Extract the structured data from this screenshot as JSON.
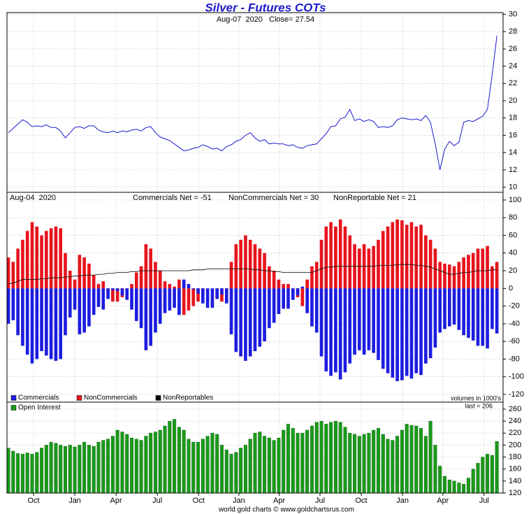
{
  "chart_data": [
    {
      "type": "line",
      "title": "Silver - Futures COTs",
      "subtitle": "Aug-07  2020   Close= 27.54",
      "color": "#1a1ad0",
      "ylim": [
        9.4,
        30.2
      ],
      "yticks": [
        10,
        12,
        14,
        16,
        18,
        20,
        22,
        24,
        26,
        28,
        30
      ],
      "grid": true,
      "values": [
        16.3,
        16.8,
        17.3,
        17.8,
        17.5,
        17.0,
        17.1,
        17.0,
        17.2,
        16.9,
        16.9,
        16.5,
        15.7,
        16.3,
        16.9,
        17.0,
        16.8,
        17.1,
        17.1,
        16.6,
        16.4,
        16.3,
        16.5,
        16.3,
        16.5,
        16.4,
        16.6,
        16.7,
        16.5,
        16.9,
        17.0,
        16.3,
        15.8,
        15.6,
        15.4,
        15.0,
        14.6,
        14.2,
        14.3,
        14.5,
        14.6,
        14.9,
        14.7,
        14.4,
        14.5,
        14.2,
        14.7,
        14.9,
        15.3,
        15.5,
        16.0,
        16.3,
        15.7,
        15.3,
        15.5,
        15.0,
        15.1,
        15.0,
        15.0,
        14.8,
        14.9,
        14.6,
        14.5,
        14.8,
        14.9,
        15.0,
        15.6,
        16.2,
        17.0,
        17.1,
        17.9,
        18.1,
        19.0,
        17.7,
        17.9,
        17.6,
        17.8,
        17.6,
        16.9,
        17.0,
        16.9,
        17.1,
        17.8,
        18.0,
        17.9,
        17.8,
        17.9,
        17.7,
        18.3,
        17.5,
        15.0,
        12.0,
        14.4,
        15.3,
        14.8,
        15.2,
        17.5,
        17.7,
        17.6,
        17.9,
        18.2,
        19.0,
        23.0,
        27.54
      ]
    },
    {
      "type": "bar",
      "date": "Aug-04  2020",
      "net_commercials": "Commercials Net = -51",
      "net_noncommercials": "NonCommercials Net = 30",
      "net_nonreportable": "NonReportable Net = 21",
      "note": "volumes in 1000's",
      "ylim": [
        -128.7,
        108.7
      ],
      "yticks": [
        -120,
        -100,
        -80,
        -60,
        -40,
        -20,
        0,
        20,
        40,
        60,
        80,
        100
      ],
      "grid": true,
      "series": [
        {
          "name": "Commercials",
          "color": "#1c1ce0",
          "values": [
            -40,
            -36,
            -53,
            -65,
            -75,
            -85,
            -80,
            -71,
            -76,
            -80,
            -82,
            -80,
            -53,
            -33,
            -24,
            -52,
            -50,
            -43,
            -30,
            -21,
            -24,
            -12,
            -2,
            -3,
            -8,
            -13,
            -24,
            -37,
            -45,
            -70,
            -65,
            -50,
            -40,
            -28,
            -25,
            -22,
            -30,
            10,
            5,
            -1,
            -6,
            -17,
            -22,
            -22,
            -12,
            -7,
            -17,
            -52,
            -72,
            -77,
            -82,
            -77,
            -71,
            -66,
            -60,
            -45,
            -39,
            -29,
            -23,
            -23,
            -13,
            -8,
            2,
            -28,
            -43,
            -50,
            -77,
            -94,
            -99,
            -95,
            -103,
            -95,
            -85,
            -75,
            -70,
            -75,
            -70,
            -73,
            -81,
            -91,
            -96,
            -101,
            -105,
            -104,
            -99,
            -102,
            -96,
            -98,
            -85,
            -79,
            -67,
            -50,
            -46,
            -43,
            -41,
            -47,
            -53,
            -56,
            -59,
            -65,
            -65,
            -68,
            -46,
            -51
          ]
        },
        {
          "name": "NonCommercials",
          "color": "#e8141c",
          "values": [
            35,
            30,
            45,
            55,
            65,
            75,
            70,
            60,
            65,
            68,
            70,
            68,
            40,
            20,
            10,
            38,
            35,
            28,
            15,
            5,
            8,
            -5,
            -15,
            -15,
            -10,
            -5,
            5,
            18,
            25,
            50,
            45,
            30,
            20,
            8,
            5,
            2,
            10,
            -30,
            -25,
            -20,
            -15,
            -5,
            0,
            0,
            -10,
            -15,
            -5,
            30,
            50,
            55,
            60,
            55,
            50,
            45,
            40,
            25,
            20,
            10,
            5,
            5,
            -5,
            -10,
            -20,
            10,
            25,
            30,
            55,
            70,
            75,
            70,
            78,
            70,
            60,
            50,
            45,
            50,
            45,
            48,
            55,
            65,
            70,
            75,
            78,
            77,
            72,
            75,
            70,
            72,
            60,
            55,
            45,
            30,
            28,
            27,
            25,
            30,
            35,
            38,
            40,
            45,
            45,
            48,
            25,
            30
          ]
        },
        {
          "name": "NonReportables",
          "type": "line",
          "color": "#000000",
          "values": [
            5,
            6,
            8,
            10,
            10,
            10,
            10,
            11,
            11,
            12,
            12,
            12,
            13,
            13,
            14,
            14,
            15,
            15,
            15,
            16,
            16,
            17,
            17,
            18,
            18,
            18,
            19,
            19,
            20,
            20,
            20,
            20,
            20,
            20,
            20,
            20,
            20,
            20,
            20,
            21,
            21,
            21,
            22,
            22,
            22,
            22,
            22,
            22,
            22,
            22,
            22,
            22,
            21,
            21,
            20,
            20,
            19,
            19,
            18,
            18,
            18,
            18,
            18,
            18,
            18,
            20,
            22,
            24,
            24,
            25,
            25,
            25,
            25,
            25,
            25,
            25,
            25,
            25,
            26,
            26,
            26,
            26,
            27,
            27,
            27,
            27,
            26,
            26,
            25,
            24,
            22,
            20,
            18,
            16,
            16,
            17,
            18,
            18,
            19,
            20,
            20,
            20,
            21,
            21
          ]
        }
      ]
    },
    {
      "type": "bar",
      "last": "last = 206",
      "ylim": [
        120,
        271.7
      ],
      "yticks": [
        120,
        140,
        160,
        180,
        200,
        220,
        240,
        260
      ],
      "grid": true,
      "xlim": [
        -0.3,
        104.3
      ],
      "xticks": [
        {
          "value": 5.3,
          "label": "Oct"
        },
        {
          "value": 14.0,
          "label": "Jan"
        },
        {
          "value": 22.7,
          "label": "Apr"
        },
        {
          "value": 31.4,
          "label": "Jul"
        },
        {
          "value": 40.1,
          "label": "Oct"
        },
        {
          "value": 48.6,
          "label": "Jan"
        },
        {
          "value": 57.1,
          "label": "Apr"
        },
        {
          "value": 65.7,
          "label": "Jul"
        },
        {
          "value": 74.4,
          "label": "Oct"
        },
        {
          "value": 83.1,
          "label": "Jan"
        },
        {
          "value": 91.6,
          "label": "Apr"
        },
        {
          "value": 100.3,
          "label": "Jul"
        }
      ],
      "series": [
        {
          "name": "Open Interest",
          "color": "#1a9a1a",
          "values": [
            195,
            190,
            186,
            185,
            187,
            185,
            188,
            195,
            200,
            205,
            203,
            200,
            198,
            200,
            197,
            200,
            205,
            200,
            198,
            205,
            208,
            210,
            215,
            225,
            222,
            218,
            212,
            210,
            208,
            215,
            220,
            222,
            225,
            232,
            240,
            243,
            230,
            225,
            210,
            205,
            205,
            210,
            215,
            220,
            218,
            200,
            192,
            185,
            188,
            195,
            200,
            210,
            220,
            222,
            215,
            212,
            208,
            212,
            225,
            235,
            228,
            220,
            220,
            225,
            232,
            238,
            240,
            235,
            238,
            240,
            238,
            230,
            220,
            218,
            215,
            218,
            220,
            225,
            228,
            218,
            210,
            208,
            215,
            225,
            235,
            233,
            232,
            228,
            215,
            240,
            200,
            165,
            148,
            142,
            140,
            137,
            135,
            145,
            160,
            170,
            180,
            185,
            183,
            206
          ]
        }
      ]
    }
  ],
  "footer": "world gold charts © www.goldchartsrus.com"
}
